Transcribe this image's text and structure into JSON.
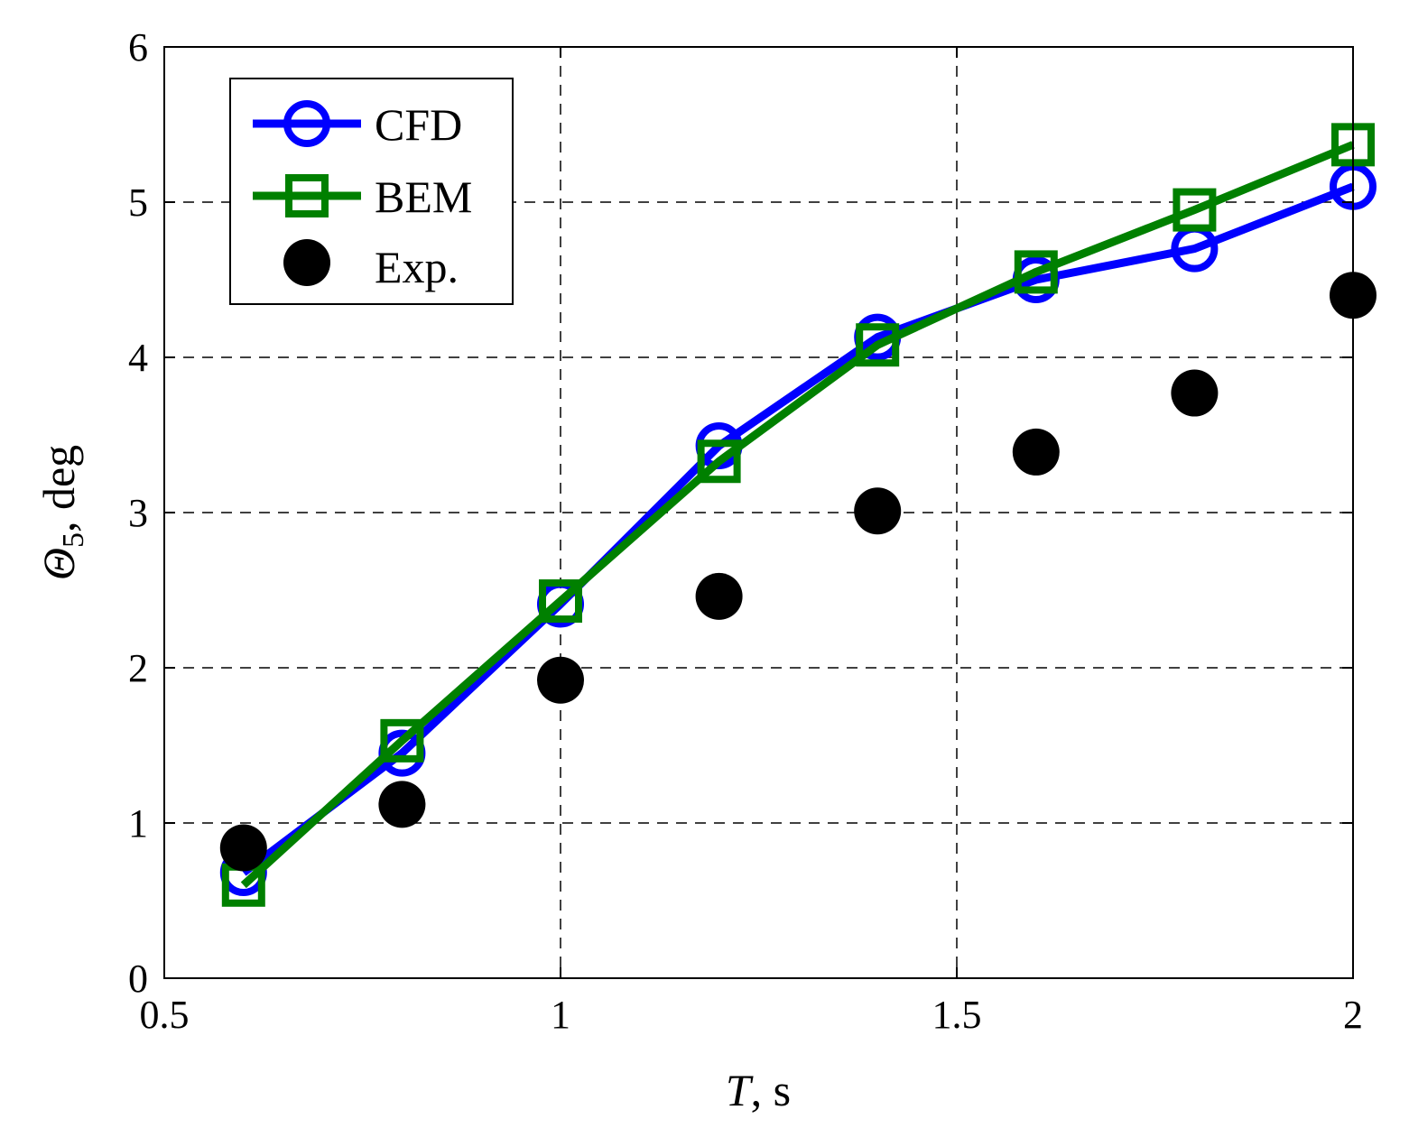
{
  "chart_data": {
    "type": "line",
    "xlabel": {
      "var": "T",
      "unit": ", s"
    },
    "ylabel": {
      "var": "Θ",
      "sub": "5",
      "unit": ", deg"
    },
    "xlim": [
      0.5,
      2
    ],
    "ylim": [
      0,
      6
    ],
    "xticks": [
      0.5,
      1,
      1.5,
      2
    ],
    "xtick_labels": [
      "0.5",
      "1",
      "1.5",
      "2"
    ],
    "yticks": [
      0,
      1,
      2,
      3,
      4,
      5,
      6
    ],
    "ytick_labels": [
      "0",
      "1",
      "2",
      "3",
      "4",
      "5",
      "6"
    ],
    "grid": true,
    "legend_position": "top-left",
    "series": [
      {
        "name": "CFD",
        "marker": "circle-open",
        "line": true,
        "color": "#0000ff",
        "x": [
          0.6,
          0.8,
          1.0,
          1.2,
          1.4,
          1.6,
          1.8,
          2.0
        ],
        "y": [
          0.68,
          1.45,
          2.41,
          3.43,
          4.13,
          4.5,
          4.7,
          5.1
        ]
      },
      {
        "name": "BEM",
        "marker": "square-open",
        "line": true,
        "color": "#008000",
        "x": [
          0.6,
          0.8,
          1.0,
          1.2,
          1.4,
          1.6,
          1.8,
          2.0
        ],
        "y": [
          0.6,
          1.53,
          2.43,
          3.33,
          4.08,
          4.55,
          4.95,
          5.37
        ]
      },
      {
        "name": "Exp.",
        "marker": "circle-filled",
        "line": false,
        "color": "#000000",
        "x": [
          0.6,
          0.8,
          1.0,
          1.2,
          1.4,
          1.6,
          1.8,
          2.0
        ],
        "y": [
          0.84,
          1.12,
          1.92,
          2.46,
          3.01,
          3.39,
          3.77,
          4.4
        ]
      }
    ]
  }
}
